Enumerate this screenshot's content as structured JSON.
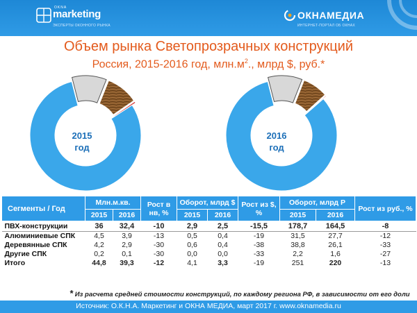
{
  "header": {
    "left_logo_top": "OKNA",
    "left_logo_brand": "marketing",
    "left_logo_tag": "ЭКСПЕРТЫ ОКОННОГО РЫНКА",
    "right_logo_brand": "ОКНАМЕДИА",
    "right_logo_tag": "ИНТЕРНЕТ-ПОРТАЛ ОБ ОКНАХ"
  },
  "title": "Объем рынка Светопрозрачных конструкций",
  "subtitle_main": "Россия, 2015-2016 год, млн.м",
  "subtitle_sup": "2",
  "subtitle_rest": "., млрд $, руб.*",
  "colors": {
    "header": "#2f9be6",
    "title": "#e35a1c",
    "pvc": "#3aa7ea",
    "aluminium": "#d8d8d8",
    "wood": "#8a5a2b",
    "other": "#d62a2a"
  },
  "chart_data": [
    {
      "type": "pie",
      "title": "2015 год",
      "center_label_line1": "2015",
      "center_label_line2": "год",
      "series": [
        "ПВХ-конструкции",
        "Алюминиевые СПК",
        "Деревянные СПК",
        "Другие СПК"
      ],
      "values": [
        36,
        4.5,
        4.2,
        0.2
      ]
    },
    {
      "type": "pie",
      "title": "2016 год",
      "center_label_line1": "2016",
      "center_label_line2": "год",
      "series": [
        "ПВХ-конструкции",
        "Алюминиевые СПК",
        "Деревянные СПК",
        "Другие СПК"
      ],
      "values": [
        32.4,
        3.9,
        2.9,
        0.1
      ]
    }
  ],
  "table": {
    "headers": {
      "segments": "Сегменты / Год",
      "volume": "Млн.м.кв.",
      "growth_vol": "Рост в нв, %",
      "turnover_usd": "Оборот, млрд $",
      "growth_usd": "Рост из $, %",
      "turnover_rub": "Оборот, млрд Р",
      "growth_rub": "Рост из руб., %",
      "y2015": "2015",
      "y2016": "2016"
    },
    "rows": [
      {
        "name": "ПВХ-конструкции",
        "v15": "36",
        "v16": "32,4",
        "gv": "-10",
        "u15": "2,9",
        "u16": "2,5",
        "gu": "-15,5",
        "r15": "178,7",
        "r16": "164,5",
        "gr": "-8"
      },
      {
        "name": "Алюминиевые СПК",
        "v15": "4,5",
        "v16": "3,9",
        "gv": "-13",
        "u15": "0,5",
        "u16": "0,4",
        "gu": "-19",
        "r15": "31,5",
        "r16": "27,7",
        "gr": "-12"
      },
      {
        "name": "Деревянные СПК",
        "v15": "4,2",
        "v16": "2,9",
        "gv": "-30",
        "u15": "0,6",
        "u16": "0,4",
        "gu": "-38",
        "r15": "38,8",
        "r16": "26,1",
        "gr": "-33"
      },
      {
        "name": "Другие СПК",
        "v15": "0,2",
        "v16": "0,1",
        "gv": "-30",
        "u15": "0,0",
        "u16": "0,0",
        "gu": "-33",
        "r15": "2,2",
        "r16": "1,6",
        "gr": "-27"
      },
      {
        "name": "Итого",
        "v15": "44,8",
        "v16": "39,3",
        "gv": "-12",
        "u15": "4,1",
        "u16": "3,3",
        "gu": "-19",
        "r15": "251",
        "r16": "220",
        "gr": "-13"
      }
    ]
  },
  "footnote_star": "*",
  "footnote": "Из расчета средней стоимости конструкций, по каждому региона РФ, в зависимости от его доли",
  "source": "Источник: О.К.Н.А. Маркетинг  и ОКНА МЕДИА, март  2017 г. www.oknamedia.ru"
}
